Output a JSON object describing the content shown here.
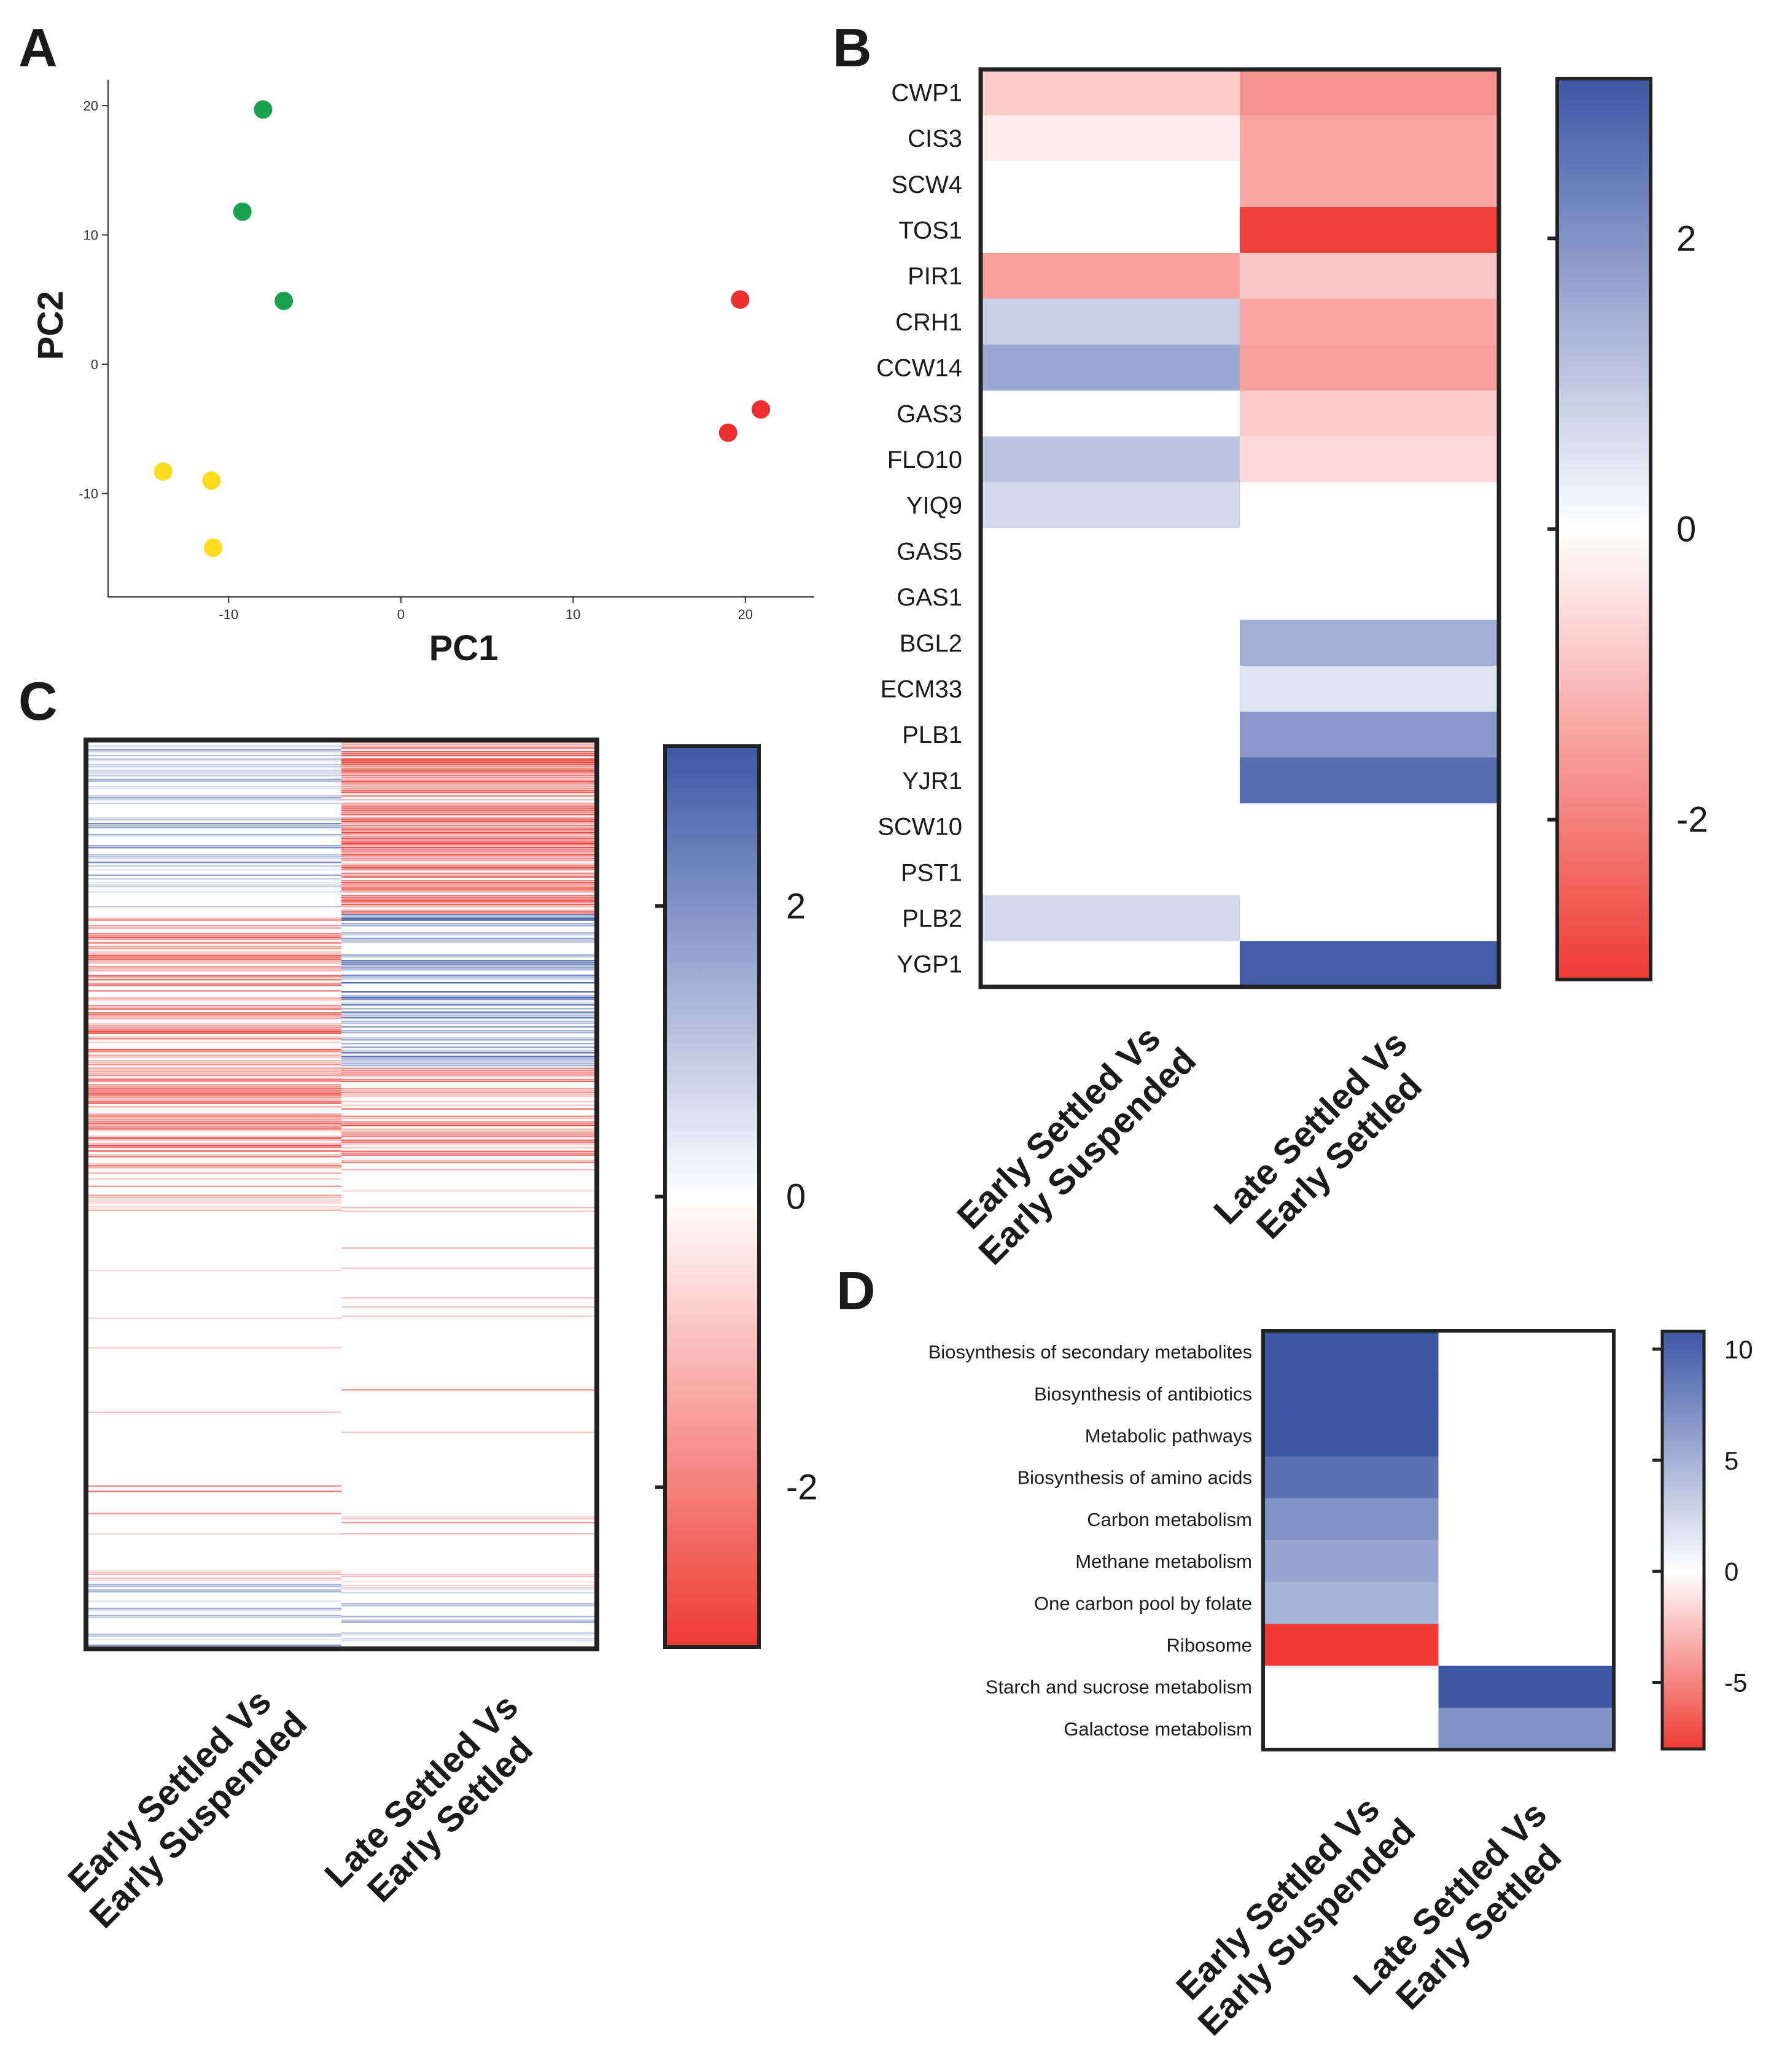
{
  "panels": {
    "A": "A",
    "B": "B",
    "C": "C",
    "D": "D"
  },
  "chart_data": [
    {
      "panel": "A",
      "type": "scatter",
      "title": "",
      "xlabel": "PC1",
      "ylabel": "PC2",
      "xlim": [
        -17,
        24
      ],
      "ylim": [
        -18,
        22
      ],
      "xticks": [
        -10,
        0,
        10,
        20
      ],
      "yticks": [
        -10,
        0,
        10,
        20
      ],
      "xtick_labels": [
        "-10",
        "0",
        "10",
        "20"
      ],
      "ytick_labels": [
        "-10",
        "0",
        "10",
        "20"
      ],
      "groups": [
        {
          "color": "#1aa150",
          "points": [
            [
              -8,
              19.7
            ],
            [
              -9.2,
              11.8
            ],
            [
              -6.8,
              4.9
            ]
          ]
        },
        {
          "color": "#ee2f2f",
          "points": [
            [
              19.7,
              5.0
            ],
            [
              20.9,
              -3.5
            ],
            [
              19.0,
              -5.3
            ]
          ]
        },
        {
          "color": "#fbdc1f",
          "points": [
            [
              -13.8,
              -8.3
            ],
            [
              -11.0,
              -9.0
            ],
            [
              -10.9,
              -14.2
            ]
          ]
        }
      ]
    },
    {
      "panel": "B",
      "type": "heatmap",
      "rows": [
        "CWP1",
        "CIS3",
        "SCW4",
        "TOS1",
        "PIR1",
        "CRH1",
        "CCW14",
        "GAS3",
        "FLO10",
        "YIQ9",
        "GAS5",
        "GAS1",
        "BGL2",
        "ECM33",
        "PLB1",
        "YJR1",
        "SCW10",
        "PST1",
        "PLB2",
        "YGP1"
      ],
      "columns": [
        "Early Settled Vs Early Suspended",
        "Late Settled Vs Early Settled"
      ],
      "values": [
        [
          -0.8,
          -1.7
        ],
        [
          -0.3,
          -1.4
        ],
        [
          0,
          -1.4
        ],
        [
          0,
          -3.0
        ],
        [
          -1.5,
          -0.9
        ],
        [
          0.9,
          -1.4
        ],
        [
          1.6,
          -1.5
        ],
        [
          0,
          -0.8
        ],
        [
          1.1,
          -0.6
        ],
        [
          0.7,
          0
        ],
        [
          0,
          0
        ],
        [
          0,
          0
        ],
        [
          0,
          1.5
        ],
        [
          0,
          0.5
        ],
        [
          0,
          1.9
        ],
        [
          0,
          2.7
        ],
        [
          0,
          0
        ],
        [
          0,
          0
        ],
        [
          0.7,
          0
        ],
        [
          0,
          3.0
        ]
      ],
      "colorbar": {
        "min": -3.1,
        "max": 3.1,
        "ticks": [
          2,
          0,
          -2
        ],
        "tick_labels": [
          "2",
          "0",
          "-2"
        ]
      }
    },
    {
      "panel": "C",
      "type": "heatmap",
      "columns": [
        "Early Settled Vs Early Suspended",
        "Late Settled Vs Early Settled"
      ],
      "segments": [
        [
          [
            0,
            0.19,
            "blue",
            "light"
          ],
          [
            0.19,
            0.205,
            "red",
            "medium"
          ],
          [
            0.205,
            0.48,
            "red",
            "medium"
          ],
          [
            0.48,
            0.52,
            "red",
            "light"
          ],
          [
            0.52,
            0.915,
            "red",
            "sparse"
          ],
          [
            0.915,
            0.93,
            "red",
            "light"
          ],
          [
            0.93,
            1.0,
            "blue",
            "light"
          ]
        ],
        [
          [
            0,
            0.19,
            "red",
            "strong"
          ],
          [
            0.19,
            0.36,
            "blue",
            "medium"
          ],
          [
            0.36,
            0.475,
            "red",
            "medium"
          ],
          [
            0.475,
            0.915,
            "red",
            "sparse"
          ],
          [
            0.915,
            0.935,
            "red",
            "light"
          ],
          [
            0.935,
            1.0,
            "blue",
            "light"
          ]
        ]
      ],
      "colorbar": {
        "min": -3.1,
        "max": 3.1,
        "ticks": [
          2,
          0,
          -2
        ],
        "tick_labels": [
          "2",
          "0",
          "-2"
        ]
      }
    },
    {
      "panel": "D",
      "type": "heatmap",
      "rows": [
        "Biosynthesis of secondary metabolites",
        "Biosynthesis of antibiotics",
        "Metabolic pathways",
        "Biosynthesis of amino acids",
        "Carbon metabolism",
        "Methane metabolism",
        "One carbon pool by folate",
        "Ribosome",
        "Starch and sucrose metabolism",
        "Galactose metabolism"
      ],
      "columns": [
        "Early Settled Vs Early Suspended",
        "Late Settled Vs Early Settled"
      ],
      "values": [
        [
          10,
          0
        ],
        [
          10,
          0
        ],
        [
          10,
          0
        ],
        [
          8.5,
          0
        ],
        [
          6.5,
          0
        ],
        [
          5.3,
          0
        ],
        [
          4.6,
          0
        ],
        [
          -8,
          0
        ],
        [
          0,
          10
        ],
        [
          0,
          6.5
        ]
      ],
      "colorbar": {
        "min": -8,
        "max": 10.8,
        "ticks": [
          10,
          5,
          0,
          -5
        ],
        "tick_labels": [
          "10",
          "5",
          "0",
          "-5"
        ]
      }
    }
  ]
}
